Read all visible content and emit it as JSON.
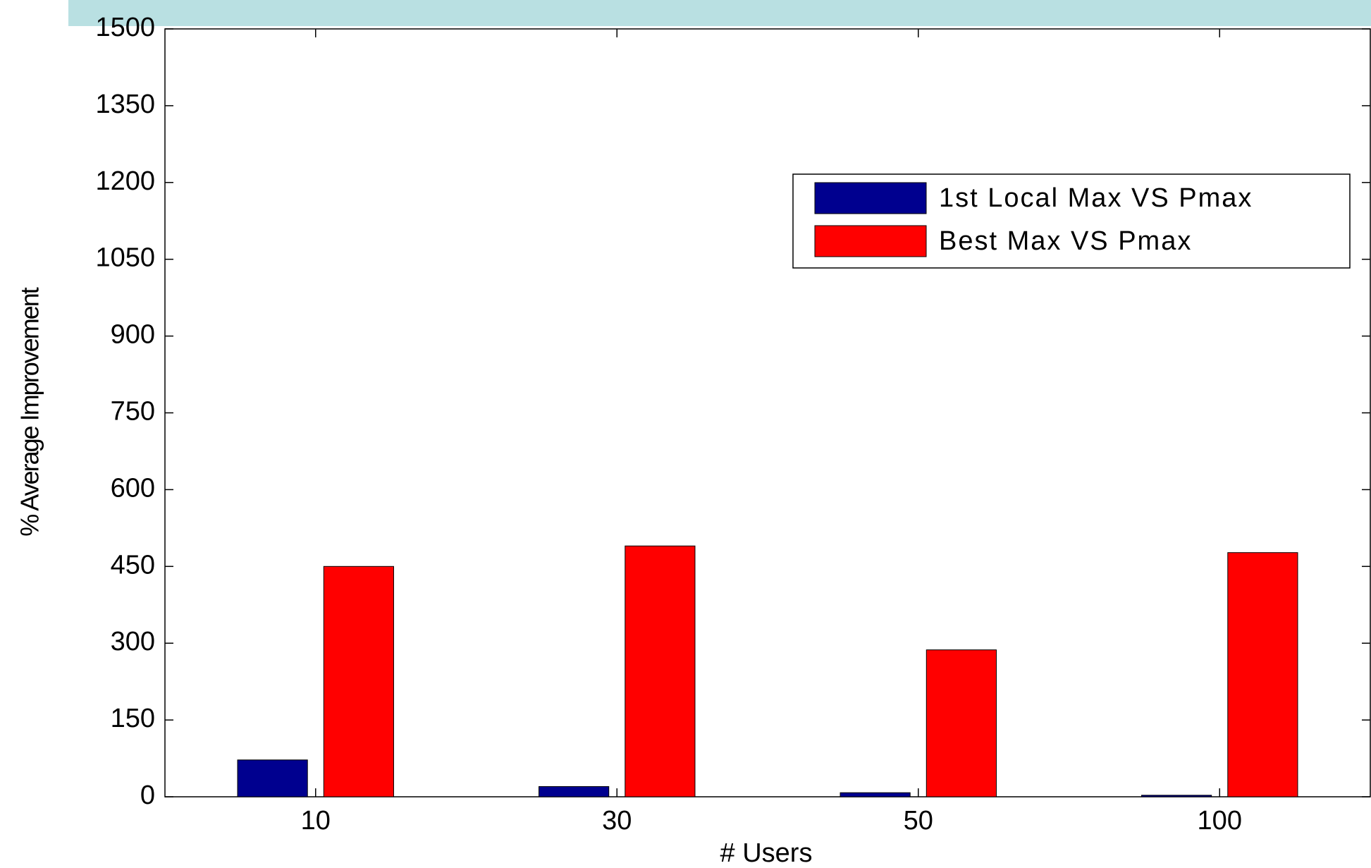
{
  "chart_data": {
    "type": "bar",
    "categories": [
      "10",
      "30",
      "50",
      "100"
    ],
    "series": [
      {
        "name": "1st Local Max VS Pmax",
        "color": "#00008f",
        "values": [
          72,
          20,
          8,
          3
        ]
      },
      {
        "name": "Best Max VS Pmax",
        "color": "#ff0000",
        "values": [
          450,
          490,
          287,
          477
        ]
      }
    ],
    "xlabel": "# Users",
    "ylabel": "% Average Improvement",
    "ylim": [
      0,
      1500
    ],
    "yticks": [
      0,
      150,
      300,
      450,
      600,
      750,
      900,
      1050,
      1200,
      1350,
      1500
    ],
    "legend": "upper right"
  }
}
